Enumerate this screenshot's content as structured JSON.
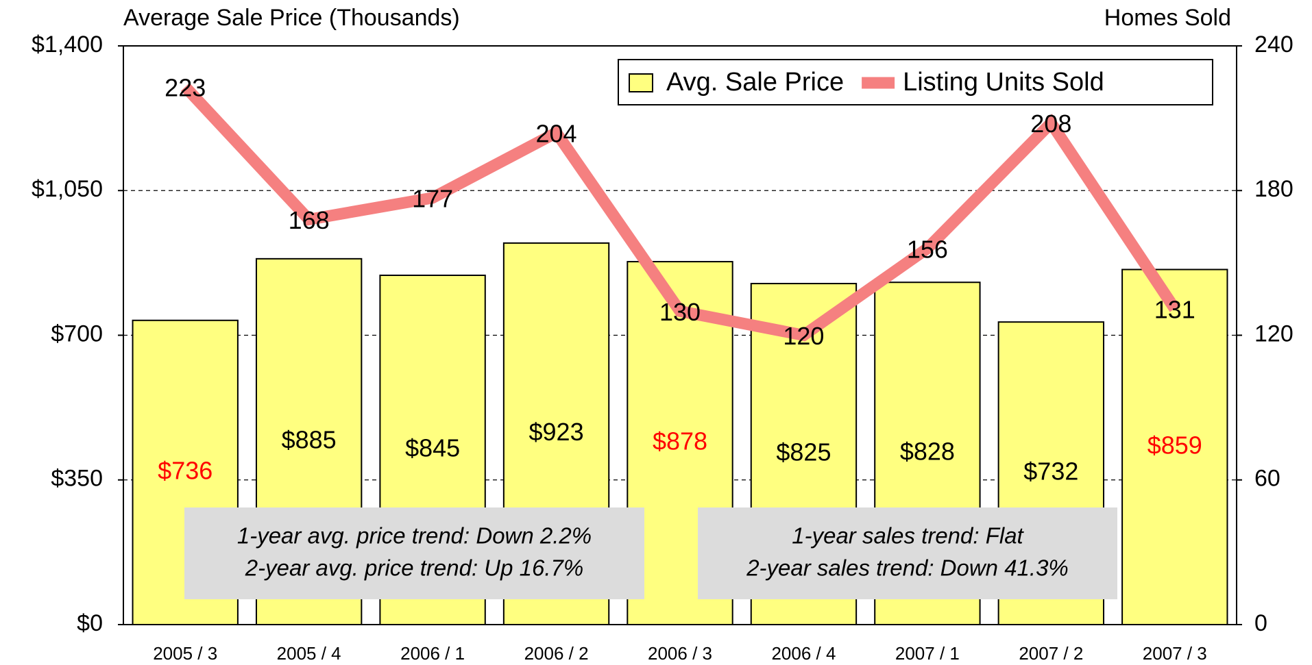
{
  "chart_data": {
    "type": "bar",
    "y_label": "Average Sale Price (Thousands)",
    "y2_label": "Homes Sold",
    "categories": [
      "2005 / 3",
      "2005 / 4",
      "2006 / 1",
      "2006 / 2",
      "2006 / 3",
      "2006 / 4",
      "2007 / 1",
      "2007 / 2",
      "2007 / 3"
    ],
    "series": [
      {
        "name": "Avg. Sale Price",
        "type": "bar",
        "color": "#ffff80",
        "values": [
          736,
          885,
          845,
          923,
          878,
          825,
          828,
          732,
          859
        ],
        "value_labels": [
          "$736",
          "$885",
          "$845",
          "$923",
          "$878",
          "$825",
          "$828",
          "$732",
          "$859"
        ],
        "label_colors": [
          "#ff0000",
          "#000000",
          "#000000",
          "#000000",
          "#ff0000",
          "#000000",
          "#000000",
          "#000000",
          "#ff0000"
        ]
      },
      {
        "name": "Listing Units Sold",
        "type": "line",
        "axis": "y2",
        "color": "#f58080",
        "values": [
          223,
          168,
          177,
          204,
          130,
          120,
          156,
          208,
          131
        ]
      }
    ],
    "ylim": [
      0,
      1400
    ],
    "yticks": [
      {
        "value": 0,
        "label": "$0"
      },
      {
        "value": 350,
        "label": "$350"
      },
      {
        "value": 700,
        "label": "$700"
      },
      {
        "value": 1050,
        "label": "$1,050"
      },
      {
        "value": 1400,
        "label": "$1,400"
      }
    ],
    "y2lim": [
      0,
      240
    ],
    "y2ticks": [
      0,
      60,
      120,
      180,
      240
    ],
    "grid": true,
    "legend": "top-right",
    "annotations": [
      {
        "lines": [
          "1-year avg. price trend: Down 2.2%",
          "2-year avg. price trend: Up 16.7%"
        ]
      },
      {
        "lines": [
          "1-year sales trend: Flat",
          "2-year sales trend: Down 41.3%"
        ]
      }
    ]
  }
}
